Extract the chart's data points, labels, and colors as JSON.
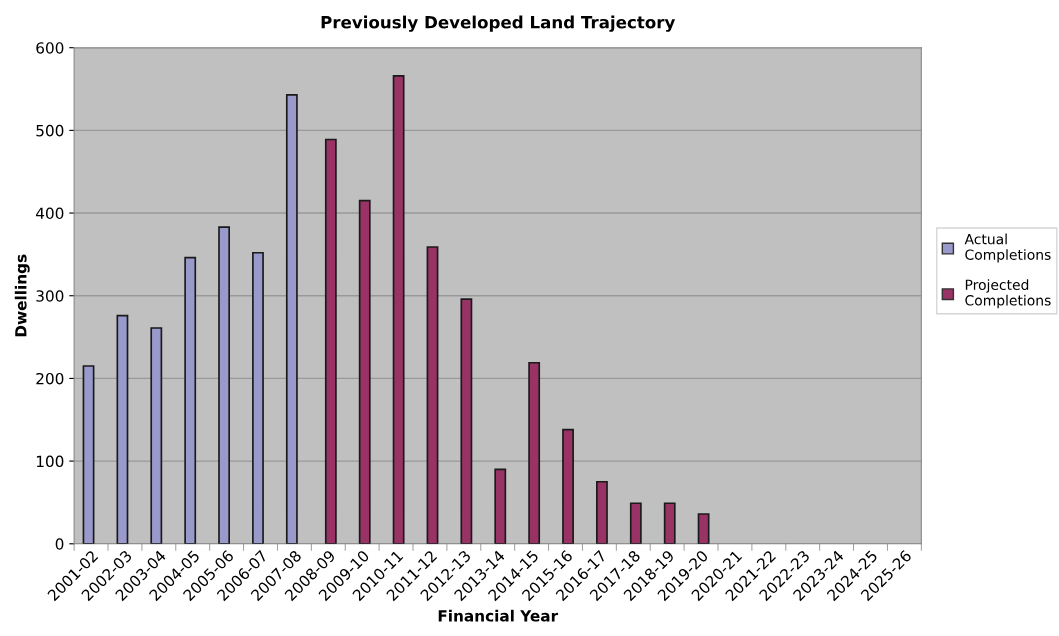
{
  "chart_data": {
    "type": "bar",
    "title": "Previously Developed Land Trajectory",
    "xlabel": "Financial Year",
    "ylabel": "Dwellings",
    "categories": [
      "2001-02",
      "2002-03",
      "2003-04",
      "2004-05",
      "2005-06",
      "2006-07",
      "2007-08",
      "2008-09",
      "2009-10",
      "2010-11",
      "2011-12",
      "2012-13",
      "2013-14",
      "2014-15",
      "2015-16",
      "2016-17",
      "2017-18",
      "2018-19",
      "2019-20",
      "2020-21",
      "2021-22",
      "2022-23",
      "2023-24",
      "2024-25",
      "2025-26"
    ],
    "series": [
      {
        "name": "Actual Completions",
        "color": "#9999cc",
        "values": [
          215,
          276,
          261,
          346,
          383,
          352,
          543,
          null,
          null,
          null,
          null,
          null,
          null,
          null,
          null,
          null,
          null,
          null,
          null,
          null,
          null,
          null,
          null,
          null,
          null
        ]
      },
      {
        "name": "Projected Completions",
        "color": "#993366",
        "values": [
          null,
          null,
          null,
          null,
          null,
          null,
          null,
          489,
          415,
          566,
          359,
          296,
          90,
          219,
          138,
          75,
          49,
          49,
          36,
          null,
          null,
          null,
          null,
          null,
          null
        ]
      }
    ],
    "ylim": [
      0,
      600
    ],
    "yticks": [
      0,
      100,
      200,
      300,
      400,
      500,
      600
    ],
    "grid": "y",
    "legend": "right"
  }
}
